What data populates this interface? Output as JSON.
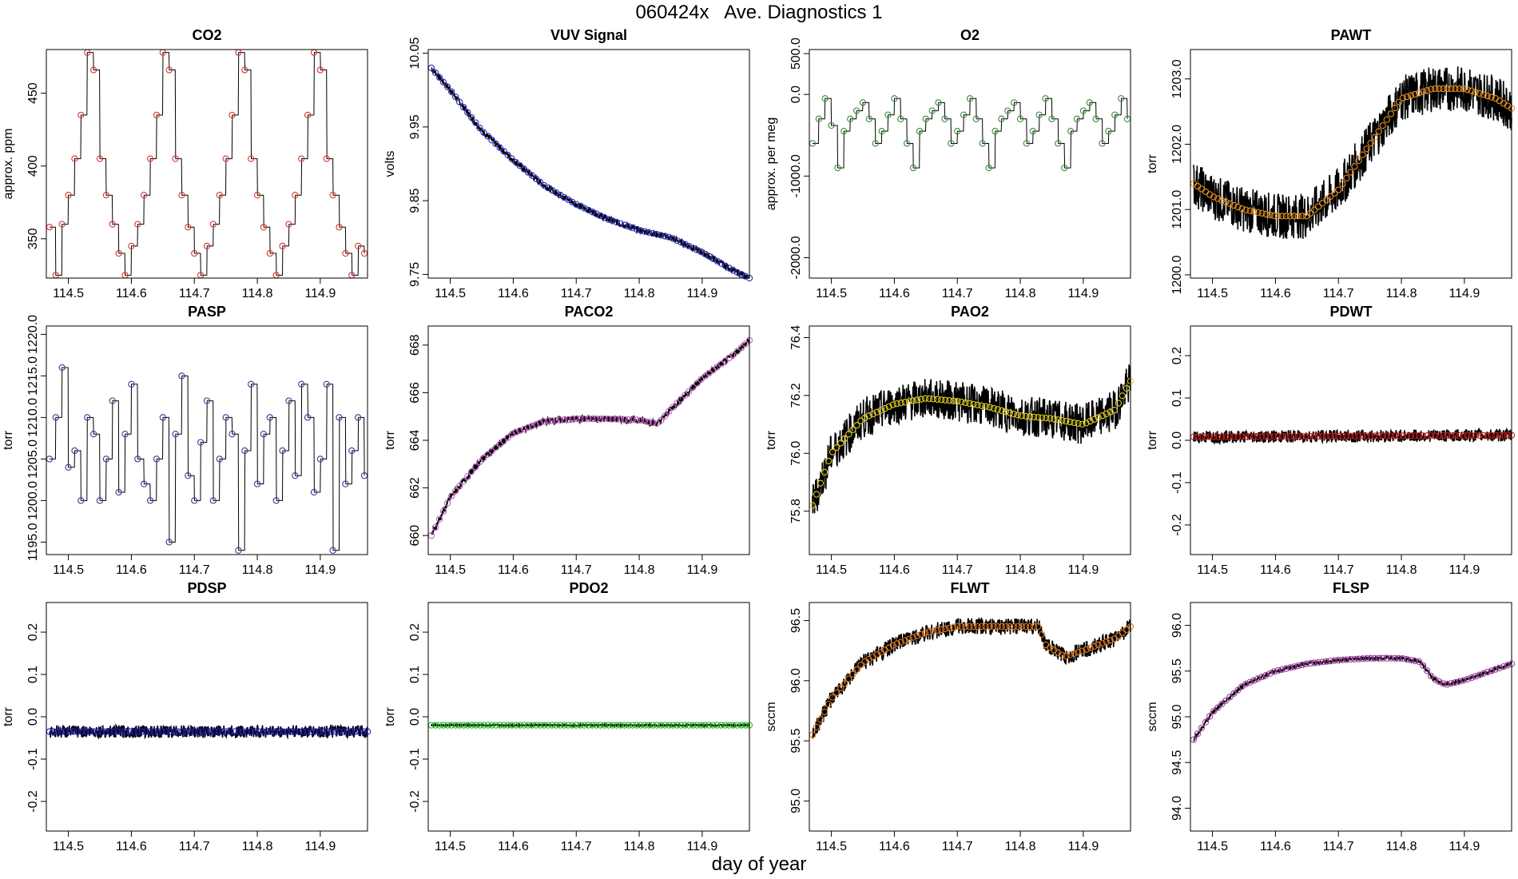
{
  "figure": {
    "title": "060424x   Ave. Diagnostics 1",
    "xlabel": "day of year"
  },
  "chart_data": [
    {
      "type": "line",
      "title": "CO2",
      "ylabel": "approx. ppm",
      "xlim": [
        114.465,
        114.975
      ],
      "ylim": [
        323,
        480
      ],
      "xticks": [
        114.5,
        114.6,
        114.7,
        114.8,
        114.9
      ],
      "yticks": [
        350,
        400,
        450
      ],
      "marker_color": "#e03030",
      "noise": 0,
      "series": [
        {
          "name": "CO2",
          "x": [
            114.47,
            114.48,
            114.49,
            114.5,
            114.51,
            114.52,
            114.53,
            114.54,
            114.55,
            114.56,
            114.57,
            114.58,
            114.59,
            114.6,
            114.61,
            114.62,
            114.63,
            114.64,
            114.65,
            114.66,
            114.67,
            114.68,
            114.69,
            114.7,
            114.71,
            114.72,
            114.73,
            114.74,
            114.75,
            114.76,
            114.77,
            114.78,
            114.79,
            114.8,
            114.81,
            114.82,
            114.83,
            114.84,
            114.85,
            114.86,
            114.87,
            114.88,
            114.89,
            114.9,
            114.91,
            114.92,
            114.93,
            114.94,
            114.95,
            114.96,
            114.97
          ],
          "values": [
            358,
            325,
            360,
            380,
            405,
            435,
            478,
            466,
            405,
            380,
            360,
            340,
            325,
            345,
            360,
            380,
            405,
            435,
            478,
            466,
            405,
            380,
            358,
            340,
            325,
            345,
            360,
            380,
            405,
            435,
            478,
            466,
            405,
            380,
            358,
            340,
            325,
            345,
            360,
            380,
            405,
            435,
            478,
            466,
            405,
            380,
            358,
            340,
            325,
            345,
            340
          ]
        }
      ]
    },
    {
      "type": "line",
      "title": "VUV Signal",
      "ylabel": "volts",
      "xlim": [
        114.465,
        114.975
      ],
      "ylim": [
        9.745,
        10.055
      ],
      "xticks": [
        114.5,
        114.6,
        114.7,
        114.8,
        114.9
      ],
      "yticks": [
        9.75,
        9.85,
        9.95,
        10.05
      ],
      "marker_color": "#2a2ab0",
      "noise": 0.004,
      "series": [
        {
          "name": "VUV Signal",
          "x": [
            114.47,
            114.5,
            114.55,
            114.6,
            114.65,
            114.7,
            114.75,
            114.8,
            114.85,
            114.9,
            114.95,
            114.975
          ],
          "values": [
            10.03,
            10.0,
            9.945,
            9.905,
            9.87,
            9.845,
            9.825,
            9.81,
            9.8,
            9.78,
            9.755,
            9.745
          ]
        }
      ]
    },
    {
      "type": "line",
      "title": "O2",
      "ylabel": "approx. per meg",
      "xlim": [
        114.465,
        114.975
      ],
      "ylim": [
        -2250,
        550
      ],
      "xticks": [
        114.5,
        114.6,
        114.7,
        114.8,
        114.9
      ],
      "yticks": [
        -2000,
        -1000,
        0,
        500
      ],
      "marker_color": "#3a8a3a",
      "noise": 0,
      "series": [
        {
          "name": "O2",
          "x": [
            114.47,
            114.48,
            114.49,
            114.5,
            114.51,
            114.52,
            114.53,
            114.54,
            114.55,
            114.56,
            114.57,
            114.58,
            114.59,
            114.6,
            114.61,
            114.62,
            114.63,
            114.64,
            114.65,
            114.66,
            114.67,
            114.68,
            114.69,
            114.7,
            114.71,
            114.72,
            114.73,
            114.74,
            114.75,
            114.76,
            114.77,
            114.78,
            114.79,
            114.8,
            114.81,
            114.82,
            114.83,
            114.84,
            114.85,
            114.86,
            114.87,
            114.88,
            114.89,
            114.9,
            114.91,
            114.92,
            114.93,
            114.94,
            114.95,
            114.96,
            114.97
          ],
          "values": [
            -600,
            -300,
            -50,
            -380,
            -900,
            -450,
            -300,
            -200,
            -100,
            -300,
            -600,
            -450,
            -250,
            -50,
            -300,
            -600,
            -900,
            -450,
            -300,
            -200,
            -100,
            -300,
            -600,
            -450,
            -250,
            -50,
            -300,
            -600,
            -900,
            -450,
            -300,
            -200,
            -100,
            -300,
            -600,
            -450,
            -250,
            -50,
            -300,
            -600,
            -900,
            -450,
            -300,
            -200,
            -100,
            -300,
            -600,
            -450,
            -250,
            -50,
            -300
          ]
        }
      ]
    },
    {
      "type": "line",
      "title": "PAWT",
      "ylabel": "torr",
      "xlim": [
        114.465,
        114.975
      ],
      "ylim": [
        1199.95,
        1203.45
      ],
      "xticks": [
        114.5,
        114.6,
        114.7,
        114.8,
        114.9
      ],
      "yticks": [
        1200.0,
        1201.0,
        1202.0,
        1203.0
      ],
      "marker_color": "#e89020",
      "noise": 0.35,
      "series": [
        {
          "name": "PAWT",
          "x": [
            114.47,
            114.5,
            114.55,
            114.6,
            114.65,
            114.7,
            114.75,
            114.8,
            114.85,
            114.9,
            114.95,
            114.975
          ],
          "values": [
            1201.4,
            1201.2,
            1201.0,
            1200.9,
            1200.9,
            1201.3,
            1202.0,
            1202.7,
            1202.85,
            1202.85,
            1202.7,
            1202.55
          ]
        }
      ]
    },
    {
      "type": "line",
      "title": "PASP",
      "ylabel": "torr",
      "xlim": [
        114.465,
        114.975
      ],
      "ylim": [
        1193.5,
        1221
      ],
      "xticks": [
        114.5,
        114.6,
        114.7,
        114.8,
        114.9
      ],
      "yticks": [
        1195,
        1200,
        1205,
        1210,
        1215,
        1220
      ],
      "marker_color": "#5a2a9a",
      "noise": 0,
      "series": [
        {
          "name": "PASP",
          "x": [
            114.47,
            114.48,
            114.49,
            114.5,
            114.51,
            114.52,
            114.53,
            114.54,
            114.55,
            114.56,
            114.57,
            114.58,
            114.59,
            114.6,
            114.61,
            114.62,
            114.63,
            114.64,
            114.65,
            114.66,
            114.67,
            114.68,
            114.69,
            114.7,
            114.71,
            114.72,
            114.73,
            114.74,
            114.75,
            114.76,
            114.77,
            114.78,
            114.79,
            114.8,
            114.81,
            114.82,
            114.83,
            114.84,
            114.85,
            114.86,
            114.87,
            114.88,
            114.89,
            114.9,
            114.91,
            114.92,
            114.93,
            114.94,
            114.95,
            114.96,
            114.97
          ],
          "values": [
            1205,
            1210,
            1216,
            1204,
            1206,
            1200,
            1210,
            1208,
            1200,
            1205,
            1212,
            1201,
            1208,
            1214,
            1205,
            1202,
            1200,
            1205,
            1210,
            1195,
            1208,
            1215,
            1203,
            1200,
            1207,
            1212,
            1200,
            1205,
            1210,
            1208,
            1194,
            1206,
            1214,
            1202,
            1208,
            1210,
            1200,
            1206,
            1212,
            1203,
            1214,
            1210,
            1201,
            1205,
            1214,
            1194,
            1210,
            1202,
            1206,
            1210,
            1203
          ]
        }
      ]
    },
    {
      "type": "line",
      "title": "PACO2",
      "ylabel": "torr",
      "xlim": [
        114.465,
        114.975
      ],
      "ylim": [
        659.2,
        668.8
      ],
      "xticks": [
        114.5,
        114.6,
        114.7,
        114.8,
        114.9
      ],
      "yticks": [
        660,
        662,
        664,
        666,
        668
      ],
      "marker_color": "#c060c0",
      "noise": 0.15,
      "series": [
        {
          "name": "PACO2",
          "x": [
            114.47,
            114.5,
            114.55,
            114.6,
            114.65,
            114.7,
            114.75,
            114.8,
            114.83,
            114.85,
            114.9,
            114.95,
            114.975
          ],
          "values": [
            660.0,
            661.6,
            663.2,
            664.3,
            664.8,
            664.9,
            664.9,
            664.85,
            664.7,
            665.3,
            666.6,
            667.6,
            668.2
          ]
        }
      ]
    },
    {
      "type": "line",
      "title": "PAO2",
      "ylabel": "torr",
      "xlim": [
        114.465,
        114.975
      ],
      "ylim": [
        75.65,
        76.44
      ],
      "xticks": [
        114.5,
        114.6,
        114.7,
        114.8,
        114.9
      ],
      "yticks": [
        75.8,
        76.0,
        76.2,
        76.4
      ],
      "marker_color": "#e0d020",
      "noise": 0.07,
      "series": [
        {
          "name": "PAO2",
          "x": [
            114.47,
            114.5,
            114.55,
            114.6,
            114.65,
            114.7,
            114.75,
            114.8,
            114.85,
            114.9,
            114.95,
            114.975
          ],
          "values": [
            75.82,
            76.0,
            76.12,
            76.17,
            76.19,
            76.18,
            76.16,
            76.13,
            76.12,
            76.1,
            76.15,
            76.25
          ]
        }
      ]
    },
    {
      "type": "line",
      "title": "PDWT",
      "ylabel": "torr",
      "xlim": [
        114.465,
        114.975
      ],
      "ylim": [
        -0.27,
        0.27
      ],
      "xticks": [
        114.5,
        114.6,
        114.7,
        114.8,
        114.9
      ],
      "yticks": [
        -0.2,
        -0.1,
        0.0,
        0.1,
        0.2
      ],
      "marker_color": "#c02020",
      "noise": 0.015,
      "series": [
        {
          "name": "PDWT",
          "x": [
            114.47,
            114.975
          ],
          "values": [
            0.008,
            0.012
          ]
        }
      ]
    },
    {
      "type": "line",
      "title": "PDSP",
      "ylabel": "torr",
      "xlim": [
        114.465,
        114.975
      ],
      "ylim": [
        -0.27,
        0.27
      ],
      "xticks": [
        114.5,
        114.6,
        114.7,
        114.8,
        114.9
      ],
      "yticks": [
        -0.2,
        -0.1,
        0.0,
        0.1,
        0.2
      ],
      "marker_color": "#2020c0",
      "noise": 0.015,
      "series": [
        {
          "name": "PDSP",
          "x": [
            114.47,
            114.975
          ],
          "values": [
            -0.035,
            -0.035
          ]
        }
      ]
    },
    {
      "type": "line",
      "title": "PDO2",
      "ylabel": "torr",
      "xlim": [
        114.465,
        114.975
      ],
      "ylim": [
        -0.27,
        0.27
      ],
      "xticks": [
        114.5,
        114.6,
        114.7,
        114.8,
        114.9
      ],
      "yticks": [
        -0.2,
        -0.1,
        0.0,
        0.1,
        0.2
      ],
      "marker_color": "#20c020",
      "noise": 0.002,
      "series": [
        {
          "name": "PDO2",
          "x": [
            114.47,
            114.975
          ],
          "values": [
            -0.02,
            -0.02
          ]
        }
      ]
    },
    {
      "type": "line",
      "title": "FLWT",
      "ylabel": "sccm",
      "xlim": [
        114.465,
        114.975
      ],
      "ylim": [
        94.75,
        96.65
      ],
      "xticks": [
        114.5,
        114.6,
        114.7,
        114.8,
        114.9
      ],
      "yticks": [
        95.0,
        95.5,
        96.0,
        96.5
      ],
      "marker_color": "#e07a20",
      "noise": 0.07,
      "series": [
        {
          "name": "FLWT",
          "x": [
            114.47,
            114.5,
            114.55,
            114.6,
            114.65,
            114.7,
            114.75,
            114.8,
            114.83,
            114.84,
            114.87,
            114.9,
            114.95,
            114.975
          ],
          "values": [
            95.55,
            95.85,
            96.15,
            96.3,
            96.4,
            96.45,
            96.45,
            96.45,
            96.45,
            96.3,
            96.2,
            96.25,
            96.35,
            96.45
          ]
        }
      ]
    },
    {
      "type": "line",
      "title": "FLSP",
      "ylabel": "sccm",
      "xlim": [
        114.465,
        114.975
      ],
      "ylim": [
        93.75,
        96.25
      ],
      "xticks": [
        114.5,
        114.6,
        114.7,
        114.8,
        114.9
      ],
      "yticks": [
        94.0,
        94.5,
        95.0,
        95.5,
        96.0
      ],
      "marker_color": "#a040a0",
      "noise": 0.02,
      "series": [
        {
          "name": "FLSP",
          "x": [
            114.47,
            114.5,
            114.55,
            114.6,
            114.65,
            114.7,
            114.75,
            114.8,
            114.83,
            114.85,
            114.87,
            114.9,
            114.95,
            114.975
          ],
          "values": [
            94.75,
            95.05,
            95.35,
            95.5,
            95.58,
            95.62,
            95.64,
            95.64,
            95.6,
            95.42,
            95.35,
            95.4,
            95.52,
            95.58
          ]
        }
      ]
    }
  ]
}
